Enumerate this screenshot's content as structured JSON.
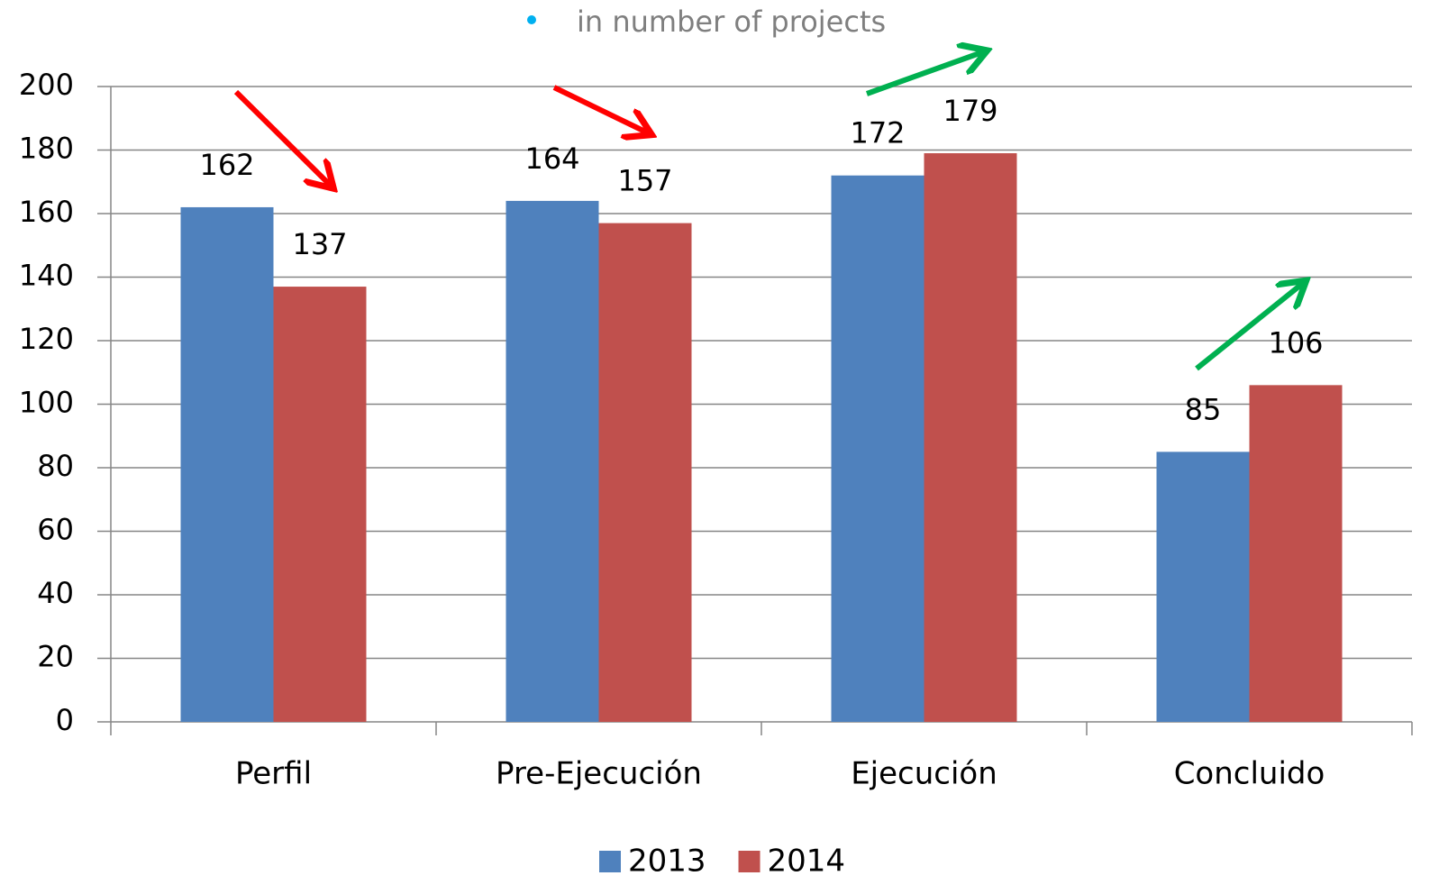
{
  "chart_data": {
    "type": "bar",
    "title": "in number of projects",
    "categories": [
      "Perfil",
      "Pre-Ejecución",
      "Ejecución",
      "Concluido"
    ],
    "series": [
      {
        "name": "2013",
        "color": "#4f81bd",
        "values": [
          162,
          164,
          172,
          85
        ]
      },
      {
        "name": "2014",
        "color": "#c0504d",
        "values": [
          137,
          157,
          179,
          106
        ]
      }
    ],
    "ylim": [
      0,
      200
    ],
    "yticks": [
      0,
      20,
      40,
      60,
      80,
      100,
      120,
      140,
      160,
      180,
      200
    ],
    "grid": true,
    "legend": "bottom"
  }
}
